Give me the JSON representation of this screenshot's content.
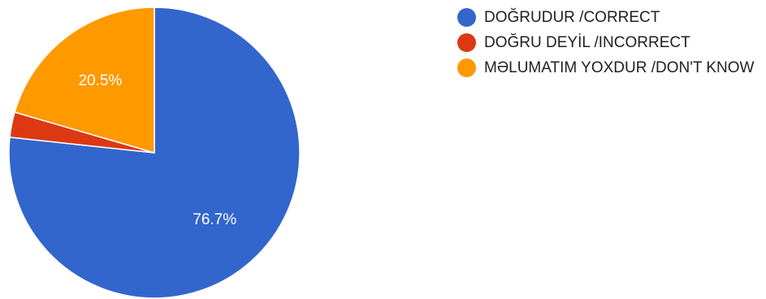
{
  "chart_data": {
    "type": "pie",
    "title": "",
    "legend_position": "right",
    "slices": [
      {
        "label": "DOĞRUDUR /CORRECT",
        "value": 76.7,
        "display": "76.7%",
        "color": "#3366CC"
      },
      {
        "label": "DOĞRU DEYİL /INCORRECT",
        "value": 2.8,
        "display": "",
        "color": "#DC3912"
      },
      {
        "label": "MƏLUMATIM YOXDUR /DON'T KNOW",
        "value": 20.5,
        "display": "20.5%",
        "color": "#FF9900"
      }
    ]
  }
}
